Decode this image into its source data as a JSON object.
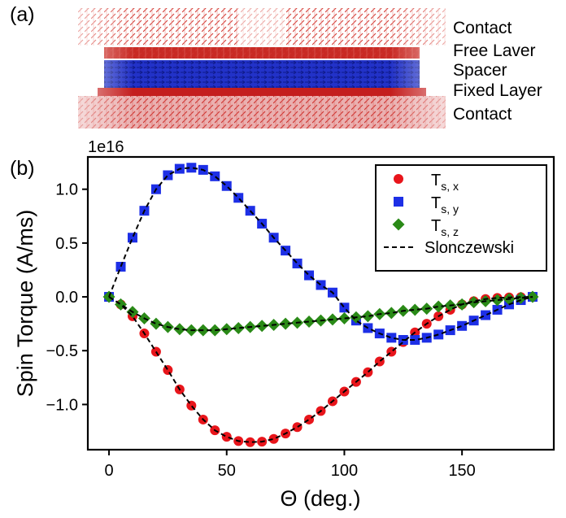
{
  "panel_a": {
    "label": "(a)",
    "layers": [
      "Contact",
      "Free Laver",
      "Spacer",
      "Fixed Layer",
      "Contact"
    ],
    "colors": {
      "contact": "#c41e1e",
      "free_layer": "#c41e1e",
      "spacer": "#1a2fd0",
      "fixed_layer": "#c41e1e"
    }
  },
  "panel_b": {
    "label": "(b)",
    "offset_text": "1e16"
  },
  "chart_data": {
    "type": "scatter",
    "xlabel": "Θ (deg.)",
    "ylabel": "Spin Torque (A/ms)",
    "xlim": [
      -9,
      189
    ],
    "ylim": [
      -1.42,
      1.3
    ],
    "x_ticks": [
      0,
      50,
      100,
      150
    ],
    "x_tick_labels": [
      "0",
      "50",
      "100",
      "150"
    ],
    "y_ticks": [
      1.0,
      0.5,
      0.0,
      -0.5,
      -1.0
    ],
    "y_tick_labels": [
      "1.0",
      "0.5",
      "0.0",
      "−0.5",
      "−1.0"
    ],
    "y_scale_multiplier": "1e16",
    "grid": false,
    "legend_position": "top-right",
    "x": [
      0,
      5,
      10,
      15,
      20,
      25,
      30,
      35,
      40,
      45,
      50,
      55,
      60,
      65,
      70,
      75,
      80,
      85,
      90,
      95,
      100,
      105,
      110,
      115,
      120,
      125,
      130,
      135,
      140,
      145,
      150,
      155,
      160,
      165,
      170,
      175,
      180
    ],
    "series": [
      {
        "label_base": "T",
        "label_sub": "s, x",
        "marker": "circle",
        "color": "#e8151b",
        "values": [
          0.0,
          -0.07,
          -0.18,
          -0.34,
          -0.51,
          -0.68,
          -0.86,
          -1.01,
          -1.14,
          -1.24,
          -1.3,
          -1.34,
          -1.35,
          -1.345,
          -1.32,
          -1.27,
          -1.21,
          -1.14,
          -1.06,
          -0.97,
          -0.88,
          -0.79,
          -0.7,
          -0.6,
          -0.51,
          -0.42,
          -0.33,
          -0.25,
          -0.18,
          -0.12,
          -0.07,
          -0.04,
          -0.02,
          -0.01,
          -0.005,
          -0.002,
          0.0
        ]
      },
      {
        "label_base": "T",
        "label_sub": "s, y",
        "marker": "square",
        "color": "#1d2fe6",
        "values": [
          0.0,
          0.28,
          0.55,
          0.8,
          1.0,
          1.13,
          1.19,
          1.2,
          1.18,
          1.12,
          1.03,
          0.92,
          0.8,
          0.68,
          0.55,
          0.43,
          0.31,
          0.2,
          0.11,
          0.04,
          -0.1,
          -0.22,
          -0.29,
          -0.34,
          -0.38,
          -0.4,
          -0.4,
          -0.38,
          -0.35,
          -0.31,
          -0.27,
          -0.22,
          -0.17,
          -0.12,
          -0.07,
          -0.03,
          0.0
        ]
      },
      {
        "label_base": "T",
        "label_sub": "s, z",
        "marker": "diamond",
        "color": "#2a8a17",
        "values": [
          0.0,
          -0.07,
          -0.14,
          -0.2,
          -0.25,
          -0.28,
          -0.3,
          -0.31,
          -0.31,
          -0.31,
          -0.3,
          -0.29,
          -0.28,
          -0.27,
          -0.26,
          -0.25,
          -0.24,
          -0.23,
          -0.22,
          -0.21,
          -0.2,
          -0.19,
          -0.18,
          -0.16,
          -0.15,
          -0.13,
          -0.12,
          -0.11,
          -0.09,
          -0.08,
          -0.07,
          -0.05,
          -0.04,
          -0.03,
          -0.02,
          -0.01,
          0.0
        ]
      },
      {
        "label": "Slonczewski",
        "style": "dashed-line",
        "color": "#000000"
      }
    ]
  }
}
